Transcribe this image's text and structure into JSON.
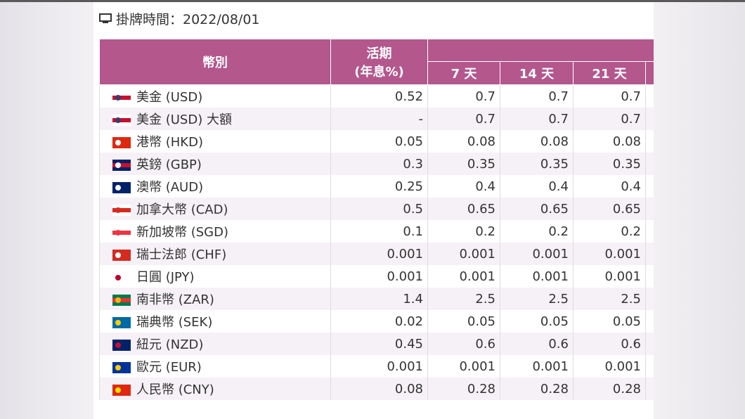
{
  "header": {
    "title": "掛牌時間：2022/08/01"
  },
  "table": {
    "columns": {
      "currency": "幣別",
      "demand_line1": "活期",
      "demand_line2": "(年息%)",
      "terms": [
        "7 天",
        "14 天",
        "21 天"
      ]
    },
    "rows": [
      [
        "美金 (USD)",
        0.52,
        0.7,
        0.7,
        0.7
      ],
      [
        "美金 (USD) 大額",
        "-",
        0.7,
        0.7,
        0.7
      ],
      [
        "港幣 (HKD)",
        0.05,
        0.08,
        0.08,
        0.08
      ],
      [
        "英鎊 (GBP)",
        0.3,
        0.35,
        0.35,
        0.35
      ],
      [
        "澳幣 (AUD)",
        0.25,
        0.4,
        0.4,
        0.4
      ],
      [
        "加拿大幣 (CAD)",
        0.5,
        0.65,
        0.65,
        0.65
      ],
      [
        "新加坡幣 (SGD)",
        0.1,
        0.2,
        0.2,
        0.2
      ],
      [
        "瑞士法郎 (CHF)",
        0.001,
        0.001,
        0.001,
        0.001
      ],
      [
        "日圓 (JPY)",
        0.001,
        0.001,
        0.001,
        0.001
      ],
      [
        "南非幣 (ZAR)",
        1.4,
        2.5,
        2.5,
        2.5
      ],
      [
        "瑞典幣 (SEK)",
        0.02,
        0.05,
        0.05,
        0.05
      ],
      [
        "紐元 (NZD)",
        0.45,
        0.6,
        0.6,
        0.6
      ],
      [
        "歐元 (EUR)",
        0.001,
        0.001,
        0.001,
        0.001
      ],
      [
        "人民幣 (CNY)",
        0.08,
        0.28,
        0.28,
        0.28
      ]
    ]
  }
}
